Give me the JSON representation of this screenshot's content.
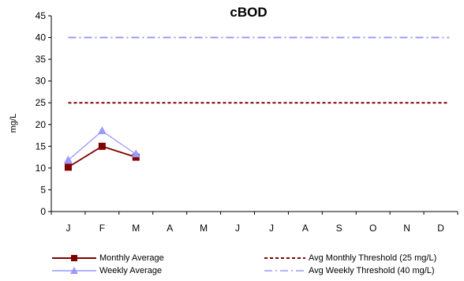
{
  "chart_data": {
    "type": "line",
    "title": "cBOD",
    "ylabel": "mg/L",
    "xlabel": "",
    "categories": [
      "J",
      "F",
      "M",
      "A",
      "M",
      "J",
      "J",
      "A",
      "S",
      "O",
      "N",
      "D"
    ],
    "ylim": [
      0,
      45
    ],
    "yticks": [
      0,
      5,
      10,
      15,
      20,
      25,
      30,
      35,
      40,
      45
    ],
    "grid": false,
    "legend_position": "bottom",
    "series": [
      {
        "name": "Monthly Average",
        "values": [
          10.2,
          15.0,
          12.5,
          null,
          null,
          null,
          null,
          null,
          null,
          null,
          null,
          null
        ],
        "color": "#800000",
        "marker": "square",
        "line": "solid"
      },
      {
        "name": "Weekly Average",
        "values": [
          11.8,
          18.5,
          13.2,
          null,
          null,
          null,
          null,
          null,
          null,
          null,
          null,
          null
        ],
        "color": "#9999ff",
        "marker": "triangle",
        "line": "solid"
      },
      {
        "name": "Avg Monthly Threshold (25 mg/L)",
        "values": [
          25,
          25,
          25,
          25,
          25,
          25,
          25,
          25,
          25,
          25,
          25,
          25
        ],
        "color": "#800000",
        "marker": "none",
        "line": "dotted"
      },
      {
        "name": "Avg Weekly Threshold (40 mg/L)",
        "values": [
          40,
          40,
          40,
          40,
          40,
          40,
          40,
          40,
          40,
          40,
          40,
          40
        ],
        "color": "#9999ff",
        "marker": "none",
        "line": "dashdot"
      }
    ]
  }
}
